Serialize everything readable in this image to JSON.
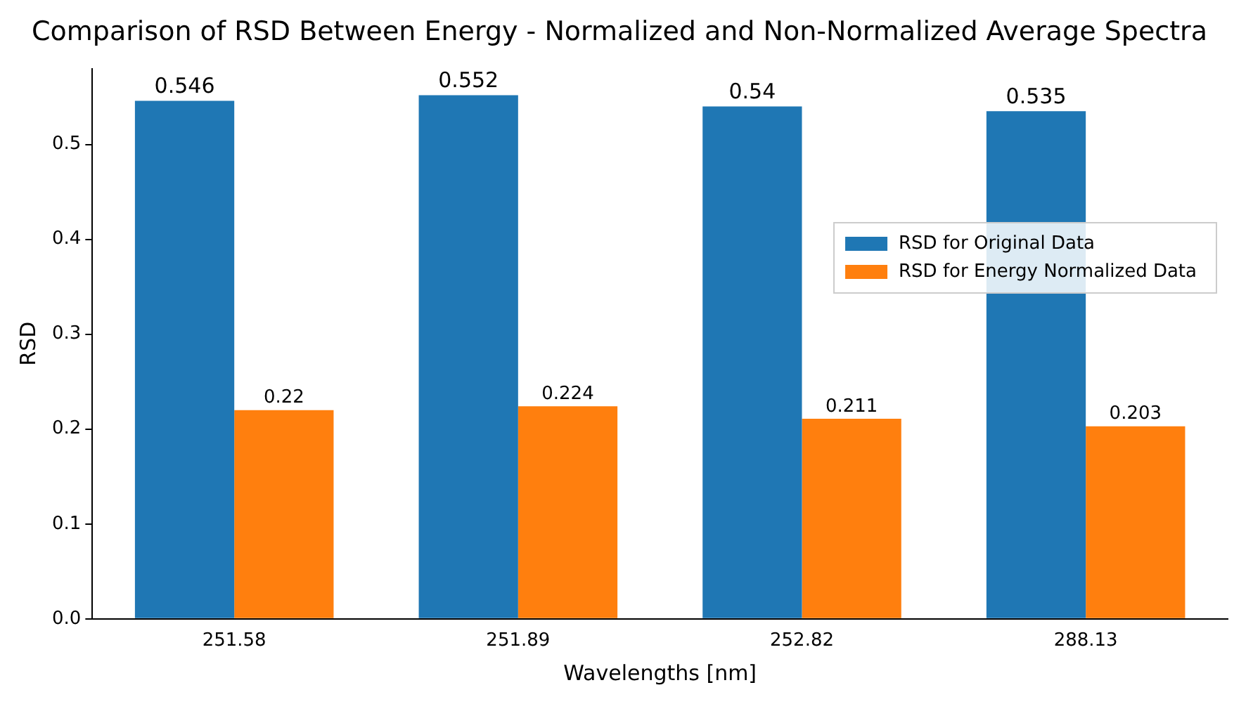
{
  "chart_data": {
    "type": "bar",
    "title": "Comparison of RSD Between Energy - Normalized and Non-Normalized Average Spectra",
    "xlabel": "Wavelengths [nm]",
    "ylabel": "RSD",
    "categories": [
      "251.58",
      "251.89",
      "252.82",
      "288.13"
    ],
    "series": [
      {
        "name": "RSD for Original Data",
        "color": "#1f77b4",
        "values": [
          0.546,
          0.552,
          0.54,
          0.535
        ]
      },
      {
        "name": "RSD for Energy Normalized Data",
        "color": "#ff7f0e",
        "values": [
          0.22,
          0.224,
          0.211,
          0.203
        ]
      }
    ],
    "ylim": [
      0,
      0.58
    ],
    "yticks": [
      {
        "value": 0,
        "label": "0.0"
      },
      {
        "value": 0.1,
        "label": "0.1"
      },
      {
        "value": 0.2,
        "label": "0.2"
      },
      {
        "value": 0.3,
        "label": "0.3"
      },
      {
        "value": 0.4,
        "label": "0.4"
      },
      {
        "value": 0.5,
        "label": "0.5"
      }
    ],
    "data_labels": true,
    "legend": "center right",
    "grid": false
  }
}
